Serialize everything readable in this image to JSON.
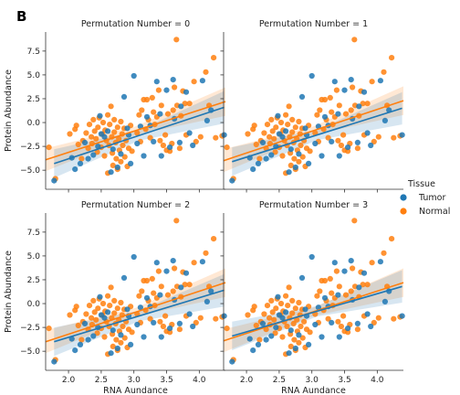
{
  "figure_label": "B",
  "colors": {
    "tumor": "#1f77b4",
    "normal": "#ff7f0e",
    "axis": "#333333"
  },
  "chart_data": {
    "type": "scatter",
    "panels": [
      {
        "title": "Permutation Number = 0"
      },
      {
        "title": "Permutation Number = 1"
      },
      {
        "title": "Permutation Number = 2"
      },
      {
        "title": "Permutation Number = 3"
      }
    ],
    "xlabel": "RNA Aundance",
    "ylabel": "Protein Abundance",
    "xlim": [
      1.65,
      4.4
    ],
    "ylim": [
      -7.0,
      9.5
    ],
    "xticks": [
      2.0,
      2.5,
      3.0,
      3.5,
      4.0
    ],
    "xtick_labels": [
      "2.0",
      "2.5",
      "3.0",
      "3.5",
      "4.0"
    ],
    "yticks": [
      -5.0,
      -2.5,
      0.0,
      2.5,
      5.0,
      7.5
    ],
    "ytick_labels": [
      "−5.0",
      "−2.5",
      "0.0",
      "2.5",
      "5.0",
      "7.5"
    ],
    "legend": {
      "title": "Tissue",
      "placement": "right",
      "entries": [
        "Tumor",
        "Normal"
      ]
    },
    "points": [
      [
        1.78,
        -6.1
      ],
      [
        2.05,
        -3.7
      ],
      [
        2.1,
        -4.9
      ],
      [
        2.18,
        -4.3
      ],
      [
        2.25,
        -2.1
      ],
      [
        2.3,
        -3.8
      ],
      [
        2.38,
        -3.4
      ],
      [
        2.45,
        -2.5
      ],
      [
        2.48,
        0.7
      ],
      [
        2.5,
        -1.2
      ],
      [
        2.55,
        -1.5
      ],
      [
        2.6,
        -0.9
      ],
      [
        2.65,
        -5.2
      ],
      [
        2.68,
        -2.8
      ],
      [
        2.75,
        -4.7
      ],
      [
        2.8,
        -3.3
      ],
      [
        2.85,
        2.7
      ],
      [
        2.9,
        -0.6
      ],
      [
        2.92,
        -1.3
      ],
      [
        2.95,
        -4.3
      ],
      [
        3.0,
        4.9
      ],
      [
        3.05,
        -2.2
      ],
      [
        3.1,
        -0.4
      ],
      [
        3.15,
        -3.5
      ],
      [
        3.2,
        0.6
      ],
      [
        3.25,
        -0.3
      ],
      [
        3.3,
        -2.0
      ],
      [
        3.35,
        4.3
      ],
      [
        3.4,
        0.9
      ],
      [
        3.42,
        -3.5
      ],
      [
        3.5,
        3.4
      ],
      [
        3.55,
        -2.6
      ],
      [
        3.6,
        4.5
      ],
      [
        3.62,
        0.4
      ],
      [
        3.7,
        -2.1
      ],
      [
        3.72,
        1.7
      ],
      [
        3.8,
        3.2
      ],
      [
        3.85,
        -1.1
      ],
      [
        3.9,
        -2.4
      ],
      [
        4.05,
        4.4
      ],
      [
        4.12,
        0.2
      ],
      [
        4.18,
        1.3
      ],
      [
        4.38,
        -1.3
      ],
      [
        1.7,
        -2.6
      ],
      [
        1.8,
        -5.9
      ],
      [
        2.02,
        -1.2
      ],
      [
        2.1,
        -0.7
      ],
      [
        2.12,
        -0.3
      ],
      [
        2.15,
        -2.3
      ],
      [
        2.2,
        -3.8
      ],
      [
        2.22,
        -1.9
      ],
      [
        2.27,
        -1.1
      ],
      [
        2.3,
        -2.7
      ],
      [
        2.32,
        -0.2
      ],
      [
        2.35,
        -1.5
      ],
      [
        2.36,
        -2.2
      ],
      [
        2.38,
        0.3
      ],
      [
        2.4,
        -0.9
      ],
      [
        2.42,
        -1.7
      ],
      [
        2.44,
        -3.1
      ],
      [
        2.45,
        -0.5
      ],
      [
        2.47,
        0.5
      ],
      [
        2.5,
        -2.6
      ],
      [
        2.52,
        -1.2
      ],
      [
        2.53,
        0.0
      ],
      [
        2.55,
        -3.5
      ],
      [
        2.56,
        -0.8
      ],
      [
        2.58,
        -1.9
      ],
      [
        2.6,
        -5.3
      ],
      [
        2.6,
        0.8
      ],
      [
        2.62,
        -2.4
      ],
      [
        2.63,
        -0.2
      ],
      [
        2.65,
        1.7
      ],
      [
        2.66,
        -1.5
      ],
      [
        2.67,
        -3.2
      ],
      [
        2.68,
        -4.5
      ],
      [
        2.7,
        0.3
      ],
      [
        2.7,
        -1.0
      ],
      [
        2.72,
        -2.1
      ],
      [
        2.73,
        -3.8
      ],
      [
        2.75,
        -0.5
      ],
      [
        2.75,
        -4.9
      ],
      [
        2.77,
        -1.7
      ],
      [
        2.78,
        -2.9
      ],
      [
        2.8,
        0.1
      ],
      [
        2.8,
        -4.1
      ],
      [
        2.82,
        -1.2
      ],
      [
        2.83,
        -2.4
      ],
      [
        2.85,
        -0.6
      ],
      [
        2.86,
        -3.6
      ],
      [
        2.88,
        -1.9
      ],
      [
        2.9,
        -4.6
      ],
      [
        2.92,
        -2.7
      ],
      [
        2.95,
        -0.3
      ],
      [
        2.97,
        -3.0
      ],
      [
        3.05,
        -1.1
      ],
      [
        3.08,
        0.8
      ],
      [
        3.1,
        -2.0
      ],
      [
        3.12,
        1.3
      ],
      [
        3.15,
        2.4
      ],
      [
        3.18,
        -0.7
      ],
      [
        3.2,
        2.4
      ],
      [
        3.22,
        0.3
      ],
      [
        3.25,
        -1.6
      ],
      [
        3.28,
        2.6
      ],
      [
        3.3,
        1.1
      ],
      [
        3.32,
        -0.2
      ],
      [
        3.35,
        0.6
      ],
      [
        3.38,
        3.4
      ],
      [
        3.4,
        -1.9
      ],
      [
        3.42,
        1.8
      ],
      [
        3.45,
        -2.4
      ],
      [
        3.48,
        -1.3
      ],
      [
        3.5,
        -2.9
      ],
      [
        3.52,
        0.9
      ],
      [
        3.55,
        -3.0
      ],
      [
        3.58,
        -2.2
      ],
      [
        3.6,
        1.3
      ],
      [
        3.62,
        3.7
      ],
      [
        3.65,
        8.7
      ],
      [
        3.66,
        1.8
      ],
      [
        3.7,
        -2.7
      ],
      [
        3.72,
        0.7
      ],
      [
        3.75,
        3.3
      ],
      [
        3.78,
        2.0
      ],
      [
        3.8,
        -1.3
      ],
      [
        3.85,
        2.0
      ],
      [
        3.92,
        4.3
      ],
      [
        3.95,
        -2.0
      ],
      [
        4.02,
        -1.5
      ],
      [
        4.1,
        5.3
      ],
      [
        4.15,
        1.8
      ],
      [
        4.22,
        6.8
      ],
      [
        4.25,
        -1.6
      ],
      [
        4.35,
        -1.4
      ]
    ],
    "tissue_assignments": [
      [
        0,
        1,
        2,
        3,
        4,
        5,
        6,
        7,
        8,
        9,
        10,
        11,
        12,
        13,
        14,
        15,
        16,
        17,
        18,
        19,
        20,
        21,
        22,
        23,
        24,
        25,
        26,
        27,
        28,
        29,
        30,
        31,
        32,
        33,
        34,
        35,
        36,
        37,
        38,
        39,
        40,
        41,
        42
      ],
      [
        0,
        1,
        2,
        3,
        4,
        5,
        6,
        7,
        8,
        9,
        10,
        11,
        12,
        13,
        14,
        15,
        16,
        17,
        18,
        19,
        20,
        21,
        22,
        23,
        24,
        25,
        26,
        27,
        28,
        29,
        30,
        31,
        32,
        33,
        34,
        35,
        36,
        37,
        38,
        39,
        40,
        41,
        42
      ],
      [
        0,
        1,
        2,
        3,
        4,
        5,
        6,
        7,
        8,
        9,
        10,
        11,
        12,
        13,
        14,
        15,
        16,
        17,
        18,
        19,
        20,
        21,
        22,
        23,
        24,
        25,
        26,
        27,
        28,
        29,
        30,
        31,
        32,
        33,
        34,
        35,
        36,
        37,
        38,
        39,
        40,
        41,
        42
      ],
      [
        0,
        1,
        2,
        3,
        4,
        5,
        6,
        7,
        8,
        9,
        10,
        11,
        12,
        13,
        14,
        15,
        16,
        17,
        18,
        19,
        20,
        21,
        22,
        23,
        24,
        25,
        26,
        27,
        28,
        29,
        30,
        31,
        32,
        33,
        34,
        35,
        36,
        37,
        38,
        39,
        40,
        41,
        42
      ]
    ],
    "fits": [
      {
        "tumor": {
          "x": [
            1.78,
            4.38
          ],
          "y": [
            -4.3,
            1.6
          ],
          "ci": [
            1.5,
            0.55,
            1.7
          ]
        },
        "normal": {
          "x": [
            1.65,
            4.4
          ],
          "y": [
            -3.9,
            2.2
          ],
          "ci": [
            1.2,
            0.45,
            1.5
          ]
        }
      },
      {
        "tumor": {
          "x": [
            1.78,
            4.38
          ],
          "y": [
            -4.1,
            1.5
          ],
          "ci": [
            1.5,
            0.55,
            1.7
          ]
        },
        "normal": {
          "x": [
            1.65,
            4.4
          ],
          "y": [
            -4.0,
            2.3
          ],
          "ci": [
            1.2,
            0.45,
            1.5
          ]
        }
      },
      {
        "tumor": {
          "x": [
            1.78,
            4.38
          ],
          "y": [
            -4.0,
            1.4
          ],
          "ci": [
            1.5,
            0.55,
            1.7
          ]
        },
        "normal": {
          "x": [
            1.65,
            4.4
          ],
          "y": [
            -4.0,
            2.2
          ],
          "ci": [
            1.2,
            0.45,
            1.5
          ]
        }
      },
      {
        "tumor": {
          "x": [
            1.78,
            4.38
          ],
          "y": [
            -3.4,
            1.8
          ],
          "ci": [
            1.5,
            0.55,
            1.7
          ]
        },
        "normal": {
          "x": [
            1.65,
            4.4
          ],
          "y": [
            -3.9,
            2.2
          ],
          "ci": [
            1.2,
            0.45,
            1.5
          ]
        }
      }
    ]
  }
}
